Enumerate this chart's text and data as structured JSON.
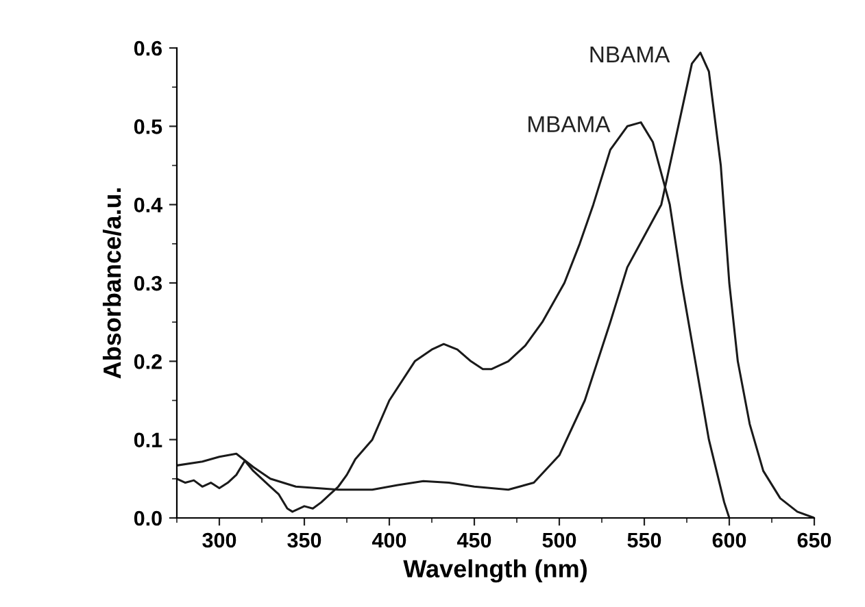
{
  "chart_data": {
    "type": "line",
    "xlabel": "Wavelngth (nm)",
    "ylabel": "Absorbance/a.u.",
    "xlim": [
      275,
      650
    ],
    "ylim": [
      0,
      0.6
    ],
    "xticks": [
      300,
      350,
      400,
      450,
      500,
      550,
      600,
      650
    ],
    "yticks": [
      {
        "value": 0,
        "label": "0.0"
      },
      0.1,
      0.2,
      0.3,
      0.4,
      0.5,
      0.6
    ],
    "grid": false,
    "legend": false,
    "marker": "none",
    "line_style": "solid",
    "series": [
      {
        "name": "MBAMA",
        "color": "#1a1a1a",
        "x": [
          275,
          280,
          285,
          290,
          295,
          300,
          305,
          310,
          315,
          320,
          325,
          330,
          335,
          340,
          343,
          350,
          355,
          360,
          365,
          370,
          375,
          380,
          390,
          400,
          415,
          425,
          432,
          440,
          448,
          455,
          460,
          470,
          480,
          490,
          503,
          512,
          520,
          530,
          540,
          548,
          555,
          565,
          572,
          580,
          588,
          597,
          600
        ],
        "values": [
          0.05,
          0.045,
          0.048,
          0.04,
          0.045,
          0.038,
          0.045,
          0.055,
          0.073,
          0.06,
          0.05,
          0.04,
          0.03,
          0.012,
          0.008,
          0.015,
          0.012,
          0.02,
          0.03,
          0.04,
          0.055,
          0.075,
          0.1,
          0.15,
          0.2,
          0.215,
          0.222,
          0.215,
          0.2,
          0.19,
          0.19,
          0.2,
          0.22,
          0.25,
          0.3,
          0.35,
          0.4,
          0.47,
          0.5,
          0.505,
          0.48,
          0.4,
          0.3,
          0.2,
          0.1,
          0.02,
          0
        ]
      },
      {
        "name": "NBAMA",
        "color": "#1a1a1a",
        "x": [
          275,
          290,
          300,
          310,
          320,
          330,
          345,
          370,
          390,
          405,
          420,
          435,
          450,
          470,
          485,
          500,
          515,
          530,
          540,
          550,
          560,
          570,
          578,
          583,
          588,
          595,
          600,
          605,
          612,
          620,
          630,
          640,
          650
        ],
        "values": [
          0.067,
          0.072,
          0.078,
          0.082,
          0.065,
          0.05,
          0.04,
          0.036,
          0.036,
          0.042,
          0.047,
          0.045,
          0.04,
          0.036,
          0.045,
          0.08,
          0.15,
          0.25,
          0.32,
          0.36,
          0.4,
          0.5,
          0.58,
          0.594,
          0.57,
          0.45,
          0.3,
          0.2,
          0.12,
          0.06,
          0.025,
          0.008,
          0
        ]
      }
    ]
  }
}
